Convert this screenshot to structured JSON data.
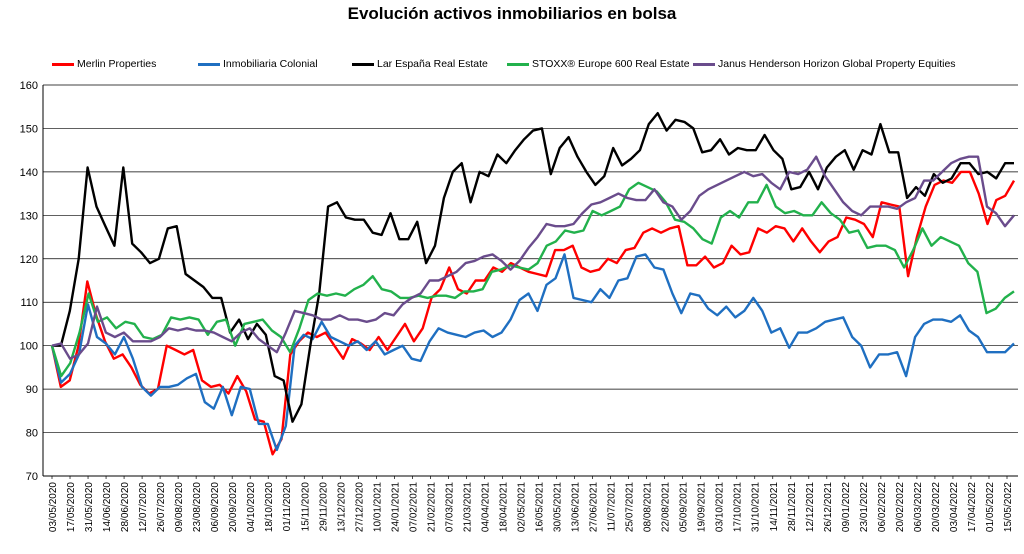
{
  "chart_data": {
    "type": "line",
    "title": "Evolución activos inmobiliarios  en bolsa",
    "xlabel": "",
    "ylabel": "",
    "ylim": [
      70,
      160
    ],
    "yticks": [
      70,
      80,
      90,
      100,
      110,
      120,
      130,
      140,
      150,
      160
    ],
    "grid": true,
    "legend_position": "top",
    "x_tick_labels": [
      "03/05/2020",
      "17/05/2020",
      "31/05/2020",
      "14/06/2020",
      "28/06/2020",
      "12/07/2020",
      "26/07/2020",
      "09/08/2020",
      "23/08/2020",
      "06/09/2020",
      "20/09/2020",
      "04/10/2020",
      "18/10/2020",
      "01/11/2020",
      "15/11/2020",
      "29/11/2020",
      "13/12/2020",
      "27/12/2020",
      "10/01/2021",
      "24/01/2021",
      "07/02/2021",
      "21/02/2021",
      "07/03/2021",
      "21/03/2021",
      "04/04/2021",
      "18/04/2021",
      "02/05/2021",
      "16/05/2021",
      "30/05/2021",
      "13/06/2021",
      "27/06/2021",
      "11/07/2021",
      "25/07/2021",
      "08/08/2021",
      "22/08/2021",
      "05/09/2021",
      "19/09/2021",
      "03/10/2021",
      "17/10/2021",
      "31/10/2021",
      "14/11/2021",
      "28/11/2021",
      "12/12/2021",
      "26/12/2021",
      "09/01/2022",
      "23/01/2022",
      "06/02/2022",
      "20/02/2022",
      "06/03/2022",
      "20/03/2022",
      "03/04/2022",
      "17/04/2022",
      "01/05/2022",
      "15/05/2022"
    ],
    "series": [
      {
        "name": "Merlin Properties",
        "color": "#ff0000",
        "values": [
          100,
          90.5,
          92,
          100,
          114.8,
          107,
          101,
          97,
          98,
          95,
          91,
          89,
          90,
          100,
          99,
          98,
          99,
          92,
          90.5,
          91,
          89,
          93,
          89.5,
          83,
          82.5,
          75,
          78.5,
          98,
          101,
          103,
          102,
          103,
          100,
          97,
          101.5,
          100.5,
          99,
          102,
          99,
          102,
          105,
          101,
          104,
          111,
          113,
          118,
          113,
          112,
          115,
          115,
          118,
          117,
          119,
          118,
          117,
          116.5,
          116,
          122,
          122,
          123,
          118,
          117,
          117.5,
          120,
          119,
          122,
          122.5,
          126,
          127,
          126,
          127,
          127.5,
          118.5,
          118.5,
          120.5,
          118,
          119,
          123,
          121,
          121.5,
          127,
          126,
          127.5,
          127,
          124,
          127,
          124,
          121.5,
          124,
          125,
          129.5,
          129,
          128,
          125,
          133,
          132.5,
          132,
          116,
          125,
          132,
          137,
          138,
          137.5,
          140,
          140,
          135,
          128,
          133.5,
          134.5,
          138
        ]
      },
      {
        "name": "Inmobiliaria Colonial",
        "color": "#1f6fc1",
        "values": [
          100,
          91.5,
          93.5,
          98,
          109.5,
          102,
          100.5,
          98,
          102,
          97,
          90.5,
          88.5,
          90.5,
          90.5,
          91,
          92.5,
          93.5,
          87,
          85.5,
          90.5,
          84,
          90.5,
          90,
          82,
          82,
          76,
          81.5,
          100,
          102.5,
          101.5,
          105.5,
          102,
          101,
          100,
          101,
          99,
          101,
          98,
          99,
          100,
          97,
          96.5,
          101,
          104,
          103,
          102.5,
          102,
          103,
          103.5,
          102,
          103,
          106,
          110.5,
          112,
          108,
          114,
          115.5,
          121,
          111,
          110.5,
          110,
          113,
          111,
          115,
          115.5,
          120.5,
          121,
          118,
          117.5,
          112,
          107.5,
          112,
          111.5,
          108.5,
          107,
          109,
          106.5,
          108,
          111,
          108,
          103,
          104,
          99.5,
          103,
          103,
          104,
          105.5,
          106,
          106.5,
          102,
          100,
          95,
          98,
          98,
          98.5,
          93,
          102,
          105,
          106,
          106,
          105.5,
          107,
          103.5,
          102,
          98.5,
          98.5,
          98.5,
          100.5
        ]
      },
      {
        "name": "Lar España Real Estate",
        "color": "#000000",
        "values": [
          100,
          100,
          108,
          120,
          141,
          132,
          127.5,
          123,
          141,
          123.5,
          121.5,
          119,
          120,
          127,
          127.5,
          116.5,
          115,
          113.5,
          111,
          111,
          103,
          106,
          101.5,
          105,
          102.5,
          93,
          92,
          82.5,
          86.5,
          100,
          112,
          132,
          133,
          129.5,
          129,
          129,
          126,
          125.5,
          130.5,
          124.5,
          124.5,
          128.5,
          119,
          123,
          134,
          140,
          142,
          133,
          140,
          139,
          144,
          142,
          145,
          147.5,
          149.5,
          150,
          139.5,
          145.5,
          148,
          143.5,
          140,
          137,
          139,
          145.5,
          141.5,
          143,
          145,
          151,
          153.5,
          149.5,
          152,
          151.5,
          150,
          144.5,
          145,
          147.5,
          144,
          145.5,
          145,
          145,
          148.5,
          145,
          143,
          136,
          136.5,
          140,
          136,
          141,
          143.5,
          145,
          140.5,
          145,
          144,
          151,
          144.5,
          144.5,
          134,
          136.5,
          134.5,
          139.5,
          137.5,
          138.5,
          142,
          142,
          139.5,
          140,
          138.5,
          142,
          142
        ]
      },
      {
        "name": "STOXX® Europe 600 Real Estate",
        "color": "#22b14c",
        "values": [
          100,
          93,
          96,
          103,
          112,
          105.5,
          106.5,
          104,
          105.5,
          105,
          102,
          101.5,
          102.5,
          106.5,
          106,
          106.5,
          106,
          102.5,
          105.5,
          106,
          100,
          105,
          105.5,
          106,
          103.5,
          102,
          98.5,
          104,
          110.5,
          112,
          111.5,
          112,
          111.5,
          113,
          114,
          116,
          113,
          112.5,
          111,
          111,
          111.5,
          111,
          111.5,
          111.5,
          111,
          112.5,
          112.5,
          113,
          117,
          117.5,
          118.5,
          118,
          117.5,
          119,
          123,
          124,
          126.5,
          126,
          126.5,
          131,
          130,
          131,
          132,
          136,
          137.5,
          136.5,
          135.5,
          133,
          129,
          128.5,
          127,
          124.5,
          123.5,
          129.5,
          131,
          129.5,
          133,
          133,
          137,
          132,
          130.5,
          131,
          130,
          130,
          133,
          130.5,
          129,
          126,
          126.5,
          122.5,
          123,
          123,
          122,
          118,
          122,
          127,
          123,
          125,
          124,
          123,
          119,
          117,
          107.5,
          108.5,
          111,
          112.5
        ]
      },
      {
        "name": "Janus Henderson Horizon Global Property Equities",
        "color": "#6a4c8c",
        "values": [
          100,
          100.5,
          97,
          98,
          100.5,
          109,
          103,
          102,
          103,
          101,
          101,
          101,
          102,
          104,
          103.5,
          104,
          103.5,
          103.5,
          103,
          102,
          101,
          103,
          104,
          101.5,
          100,
          98.5,
          103,
          108,
          107.5,
          107,
          106,
          106,
          107,
          106,
          106,
          105.5,
          106,
          107.5,
          107,
          109.5,
          111,
          112,
          115,
          115,
          116,
          117,
          119,
          119.5,
          120.5,
          121,
          119.5,
          117.5,
          119.5,
          122.5,
          125,
          128,
          127.5,
          127.5,
          128,
          130.5,
          132.5,
          133,
          134,
          135,
          134,
          133.5,
          133.5,
          136,
          133,
          132,
          129,
          131,
          134.5,
          136,
          137,
          138,
          139,
          140,
          139,
          139.5,
          137.5,
          136,
          140,
          139.5,
          140.5,
          143.5,
          139,
          136,
          133,
          131,
          130,
          132,
          132,
          132,
          131.5,
          133,
          134,
          138,
          138,
          140,
          142,
          143,
          143.5,
          143.5,
          132,
          130.5,
          127.5,
          130
        ]
      }
    ]
  }
}
